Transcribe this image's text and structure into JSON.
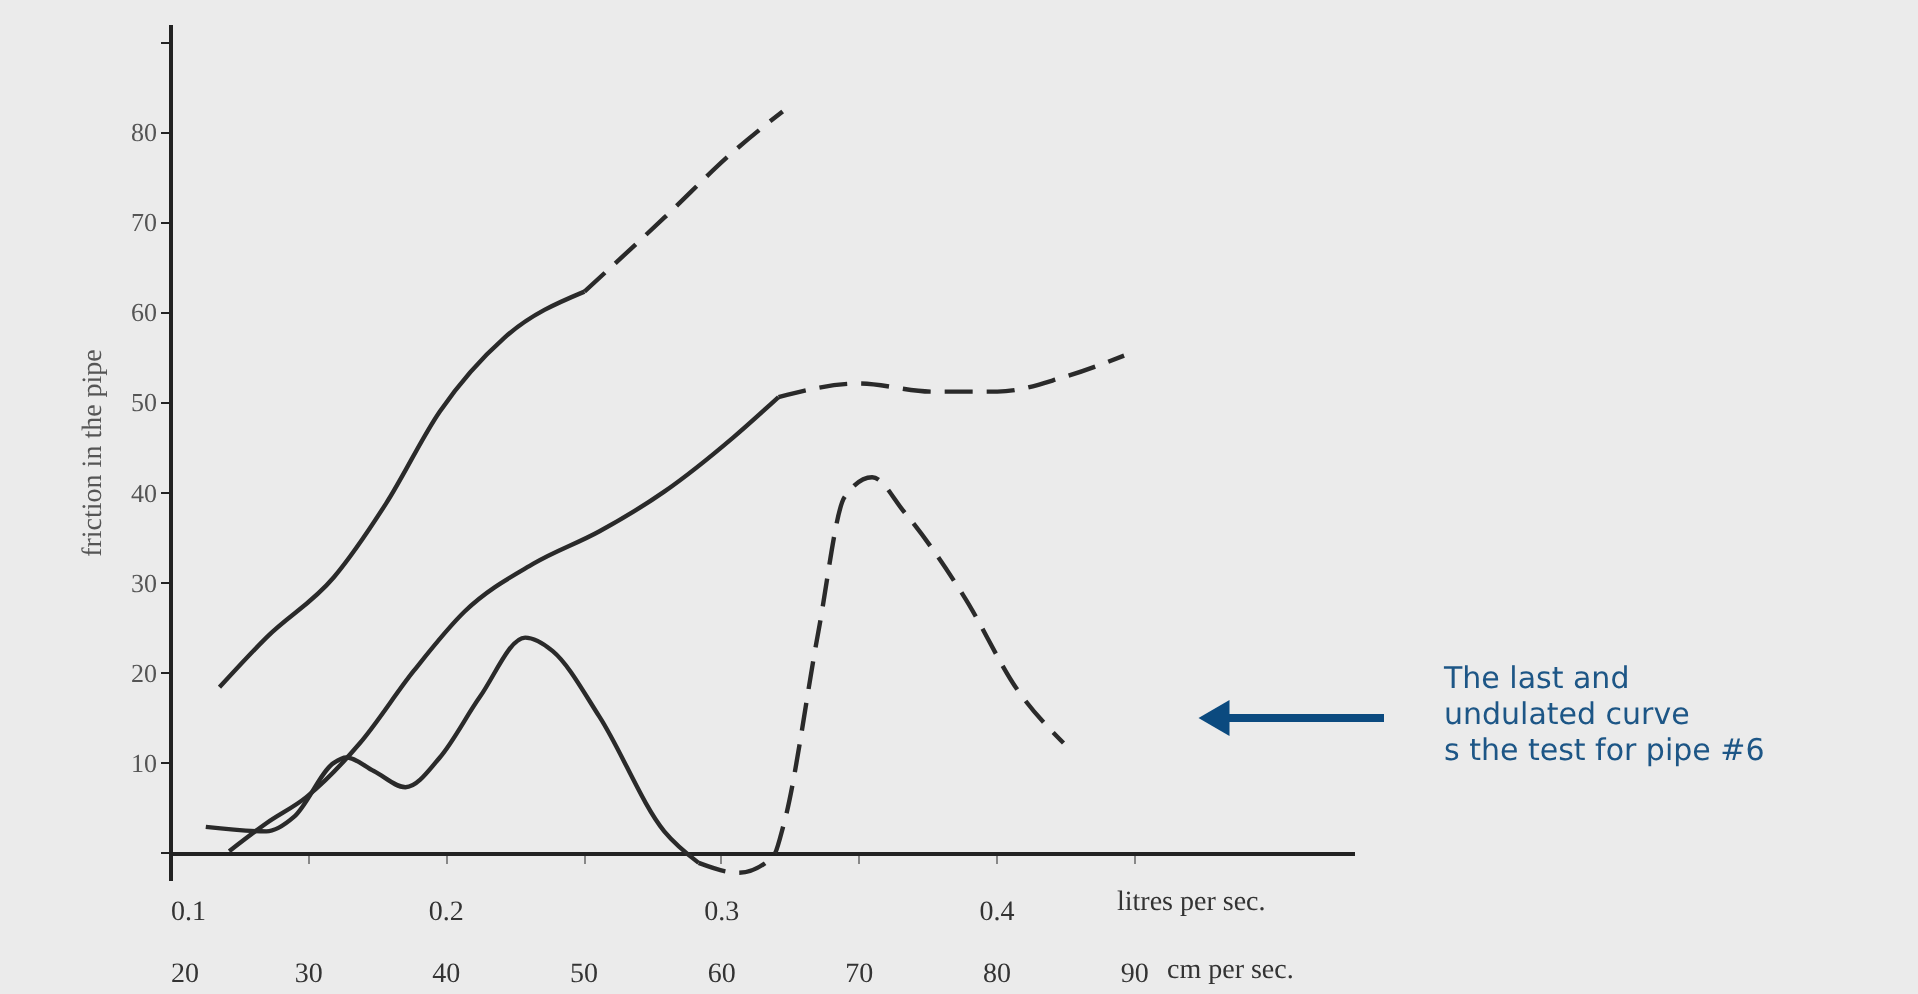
{
  "chart_data": {
    "type": "line",
    "xlabel": "cm per sec.",
    "x2label": "litres per sec.",
    "ylabel": "friction in the pipe",
    "xlim": [
      20,
      106
    ],
    "xticks": [
      20,
      30,
      40,
      50,
      60,
      70,
      80,
      90
    ],
    "x2lim": [
      0.1,
      0.53
    ],
    "x2ticks": [
      0.1,
      0.2,
      0.3,
      0.4
    ],
    "ylim": [
      -3,
      92
    ],
    "yticks": [
      {
        "value": 0,
        "label": null
      },
      10,
      20,
      30,
      40,
      50,
      60,
      70,
      80,
      {
        "value": 90,
        "label": null
      }
    ],
    "grid": false,
    "marker": "none",
    "annotations": [
      "The last and\nundulated curve\ns the test for pipe #6"
    ],
    "series": [
      {
        "color": "#2a2a2a",
        "line_style": "solid",
        "x": [
          23.6,
          27.0,
          31.9,
          35.7,
          39.6,
          44.3,
          50.1
        ],
        "values": [
          18.4,
          23.9,
          30.6,
          38.8,
          49.0,
          57.2,
          62.3
        ]
      },
      {
        "color": "#2a2a2a",
        "line_style": "dashed",
        "x": [
          50.1,
          55.9,
          60.9,
          64.5
        ],
        "values": [
          62.3,
          70.5,
          77.8,
          82.3
        ]
      },
      {
        "color": "#2a2a2a",
        "line_style": "solid",
        "x": [
          24.3,
          27.0,
          29.9,
          33.8,
          37.7,
          41.4,
          46.4,
          51.2,
          55.9,
          60.9,
          64.2
        ],
        "values": [
          0.2,
          3.3,
          6.2,
          12.2,
          20.2,
          26.8,
          32.1,
          35.7,
          40.1,
          46.1,
          50.6
        ]
      },
      {
        "color": "#2a2a2a",
        "line_style": "dashed",
        "x": [
          64.2,
          70.0,
          75.4,
          80.1,
          84.9,
          89.3
        ],
        "values": [
          50.6,
          52.1,
          51.2,
          51.2,
          52.8,
          55.2
        ]
      },
      {
        "color": "#2a2a2a",
        "line_style": "solid",
        "x": [
          22.6,
          27.0,
          29.0,
          31.9,
          32.8,
          34.8,
          37.1,
          39.6,
          42.5,
          45.8,
          47.8,
          51.2,
          55.9,
          58.4
        ],
        "values": [
          2.9,
          2.4,
          4.0,
          10.0,
          10.6,
          9.1,
          7.3,
          10.6,
          17.3,
          23.9,
          22.4,
          15.1,
          2.4,
          -1.1
        ]
      },
      {
        "color": "#2a2a2a",
        "line_style": "dashed",
        "x": [
          58.4,
          61.3,
          63.8,
          64.6,
          67.1,
          69.0,
          71.0,
          73.3,
          77.7,
          81.6,
          84.9
        ],
        "values": [
          -1.1,
          -2.2,
          -0.4,
          3.3,
          24.6,
          39.5,
          41.7,
          37.9,
          28.4,
          18.0,
          12.2
        ]
      }
    ]
  }
}
